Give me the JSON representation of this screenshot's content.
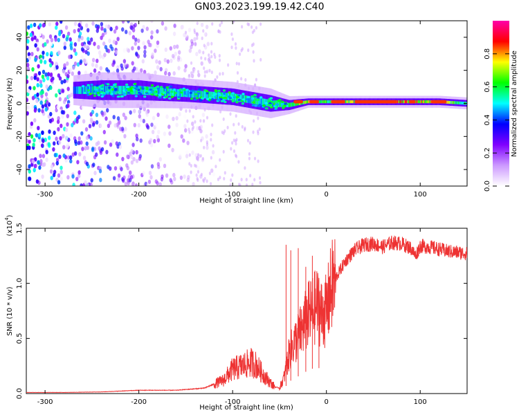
{
  "figure_title": "GN03.2023.199.19.42.C40",
  "chart_data": [
    {
      "type": "heatmap",
      "title": "",
      "xlabel": "Height of straight line (km)",
      "ylabel": "Frequency (Hz)",
      "xlim": [
        -320,
        150
      ],
      "ylim": [
        -50,
        50
      ],
      "xticks": [
        -300,
        -200,
        -100,
        0,
        100
      ],
      "yticks": [
        -40,
        -20,
        0,
        20,
        40
      ],
      "colorbar": {
        "label": "Normalized spectral amplitude",
        "range": [
          0,
          1
        ],
        "ticks": [
          "0.0",
          "0.2",
          "0.4",
          "0.6",
          "0.8"
        ],
        "tick_values": [
          0,
          0.2,
          0.4,
          0.6,
          0.8
        ],
        "colormap": [
          "#ffffff",
          "#cc99ff",
          "#8000ff",
          "#0000ff",
          "#00ffff",
          "#00ff00",
          "#ffff00",
          "#ff0000",
          "#ff00aa"
        ]
      },
      "features": {
        "main_band": [
          {
            "x": -270,
            "f_center": 8,
            "f_width": 10,
            "amp": 0.55
          },
          {
            "x": -240,
            "f_center": 8,
            "f_width": 12,
            "amp": 0.6
          },
          {
            "x": -200,
            "f_center": 8,
            "f_width": 12,
            "amp": 0.6
          },
          {
            "x": -150,
            "f_center": 6,
            "f_width": 10,
            "amp": 0.6
          },
          {
            "x": -100,
            "f_center": 4,
            "f_width": 10,
            "amp": 0.6
          },
          {
            "x": -60,
            "f_center": 0,
            "f_width": 10,
            "amp": 0.6
          },
          {
            "x": -40,
            "f_center": -1,
            "f_width": 6,
            "amp": 0.65
          },
          {
            "x": -20,
            "f_center": 1,
            "f_width": 4,
            "amp": 0.8
          },
          {
            "x": 0,
            "f_center": 1,
            "f_width": 4,
            "amp": 0.7
          },
          {
            "x": 40,
            "f_center": 1,
            "f_width": 4,
            "amp": 0.85
          },
          {
            "x": 80,
            "f_center": 1,
            "f_width": 4,
            "amp": 0.9
          },
          {
            "x": 120,
            "f_center": 1,
            "f_width": 4,
            "amp": 0.85
          },
          {
            "x": 150,
            "f_center": 0,
            "f_width": 4,
            "amp": 0.6
          }
        ],
        "noise_region_x": [
          -320,
          -120
        ]
      }
    },
    {
      "type": "line",
      "title": "",
      "xlabel": "Height of straight line (km)",
      "ylabel": "SNR (10 * v/v)",
      "scale_label": "(x10",
      "scale_exponent": "4",
      "scale_suffix": ")",
      "xlim": [
        -320,
        150
      ],
      "ylim": [
        0,
        15000
      ],
      "xticks": [
        -300,
        -200,
        -100,
        0,
        100
      ],
      "yticks": [
        "0.0",
        "0.5",
        "1.0",
        "1.5"
      ],
      "ytick_values": [
        0,
        5000,
        10000,
        15000
      ],
      "color": "#ee3333",
      "series": [
        {
          "x": [
            -320,
            -280,
            -240,
            -200,
            -160,
            -130,
            -110,
            -100,
            -90,
            -80,
            -75,
            -70,
            -60,
            -55,
            -50,
            -45,
            -40,
            -35,
            -30,
            -25,
            -20,
            -15,
            -10,
            -5,
            0,
            5,
            10,
            20,
            30,
            40,
            50,
            60,
            70,
            80,
            90,
            95,
            100,
            110,
            120,
            130,
            140,
            150
          ],
          "y": [
            100,
            100,
            150,
            300,
            300,
            500,
            1200,
            2200,
            2500,
            2800,
            2600,
            2000,
            1000,
            600,
            500,
            1500,
            3500,
            4500,
            5200,
            6000,
            7000,
            7500,
            8000,
            7200,
            7500,
            9500,
            10500,
            12000,
            13000,
            13500,
            13600,
            13300,
            13700,
            13600,
            13200,
            12500,
            13400,
            13300,
            13100,
            12900,
            12800,
            12700
          ],
          "spikes": [
            {
              "x": -43,
              "y": 13500
            },
            {
              "x": -38,
              "y": 13000
            },
            {
              "x": -30,
              "y": 13200
            },
            {
              "x": -22,
              "y": 11500
            },
            {
              "x": -15,
              "y": 12500
            },
            {
              "x": -8,
              "y": 10500
            }
          ]
        }
      ]
    }
  ]
}
